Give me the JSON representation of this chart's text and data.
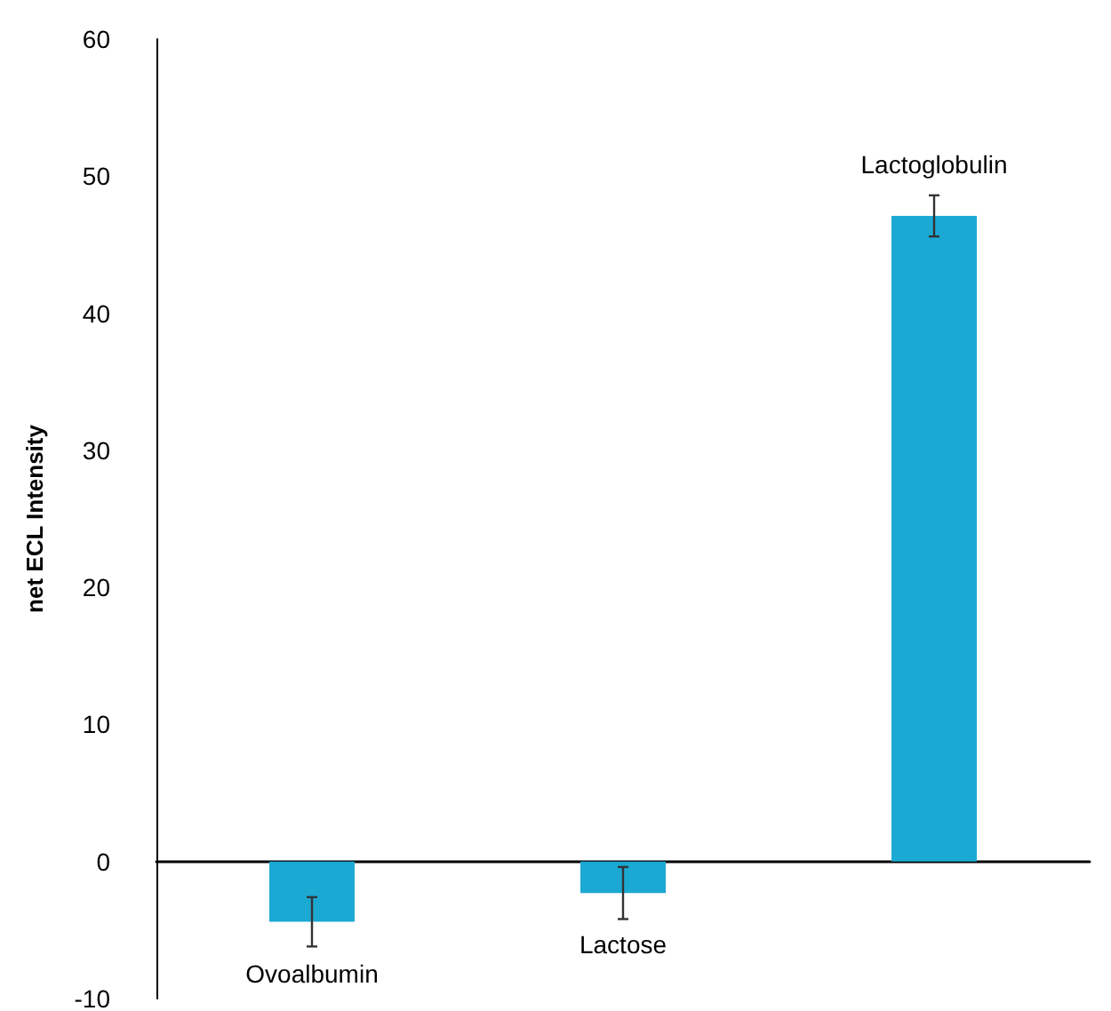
{
  "chart_data": {
    "type": "bar",
    "ylabel": "net ECL Intensity",
    "categories": [
      "Ovoalbumin",
      "Lactose",
      "Lactoglobulin"
    ],
    "values": [
      -4.4,
      -2.3,
      47.1
    ],
    "errors": [
      1.8,
      1.9,
      1.5
    ],
    "color": "#1ba9d4",
    "ylim": [
      -10,
      60
    ],
    "yticks": [
      -10,
      0,
      10,
      20,
      30,
      40,
      50,
      60
    ],
    "tick_labels": "y"
  }
}
